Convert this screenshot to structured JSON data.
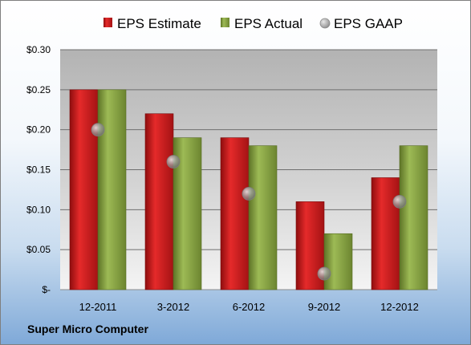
{
  "company_name": "Super Micro Computer",
  "colors": {
    "estimate": "#c0191a",
    "actual": "#7f9a3a",
    "gaap": "#a6a6a6"
  },
  "chart_data": {
    "type": "bar",
    "title": "",
    "xlabel": "",
    "ylabel": "",
    "categories": [
      "12-2011",
      "3-2012",
      "6-2012",
      "9-2012",
      "12-2012"
    ],
    "series": [
      {
        "name": "EPS Estimate",
        "style": "bar",
        "values": [
          0.25,
          0.22,
          0.19,
          0.11,
          0.14
        ]
      },
      {
        "name": "EPS Actual",
        "style": "bar",
        "values": [
          0.25,
          0.19,
          0.18,
          0.07,
          0.18
        ]
      },
      {
        "name": "EPS GAAP",
        "style": "marker",
        "values": [
          0.2,
          0.16,
          0.12,
          0.02,
          0.11
        ]
      }
    ],
    "ylim": [
      0,
      0.3
    ],
    "yticks": [
      0,
      0.05,
      0.1,
      0.15,
      0.2,
      0.25,
      0.3
    ],
    "ytick_labels": [
      "$-",
      "$0.05",
      "$0.10",
      "$0.15",
      "$0.20",
      "$0.25",
      "$0.30"
    ],
    "grid": true,
    "legend_position": "top"
  }
}
